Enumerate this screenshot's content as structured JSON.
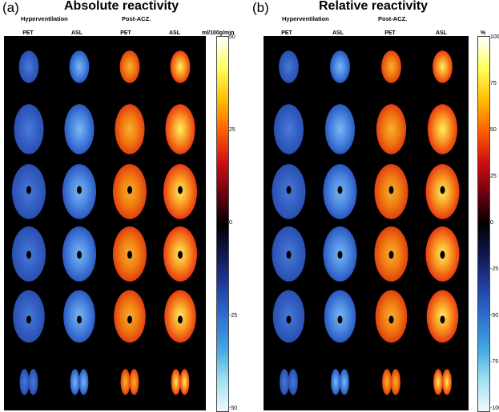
{
  "panels": [
    {
      "tag": "(a)",
      "title": "Absolute reactivity",
      "conditions": [
        "Hyperventilation",
        "Post-ACZ."
      ],
      "columns": [
        "PET",
        "ASL",
        "PET",
        "ASL"
      ],
      "colorbar": {
        "unit": "ml/100g/min",
        "ticks": [
          "50",
          "25",
          "0",
          "-25",
          "-50"
        ],
        "colors": [
          "#ffffff",
          "#ffff60",
          "#ffc000",
          "#ff6000",
          "#d01010",
          "#700010",
          "#000000",
          "#101850",
          "#2040a0",
          "#3070d0",
          "#40a8e0",
          "#a0e0f0",
          "#f0f8ff"
        ]
      }
    },
    {
      "tag": "(b)",
      "title": "Relative reactivity",
      "conditions": [
        "Hyperventilation",
        "Post-ACZ."
      ],
      "columns": [
        "PET",
        "ASL",
        "PET",
        "ASL"
      ],
      "colorbar": {
        "unit": "%",
        "ticks": [
          "100",
          "75",
          "50",
          "25",
          "0",
          "-25",
          "-50",
          "-75",
          "-100"
        ],
        "colors": [
          "#ffffff",
          "#ffff60",
          "#ffc000",
          "#ff6000",
          "#d01010",
          "#700010",
          "#000000",
          "#101850",
          "#2040a0",
          "#3070d0",
          "#40a8e0",
          "#a0e0f0",
          "#f0f8ff"
        ]
      }
    }
  ],
  "brain_slices": {
    "rows": 6,
    "column_palettes": {
      "hyper_pet": [
        "#2a4fb0",
        "#3561c4",
        "#4a7ad6"
      ],
      "hyper_asl": [
        "#2a58c0",
        "#4a86e0",
        "#7ab8f0"
      ],
      "acz_pet": [
        "#e04010",
        "#f07a10",
        "#f8b030"
      ],
      "acz_asl": [
        "#e83a10",
        "#f89020",
        "#fff060"
      ]
    }
  }
}
